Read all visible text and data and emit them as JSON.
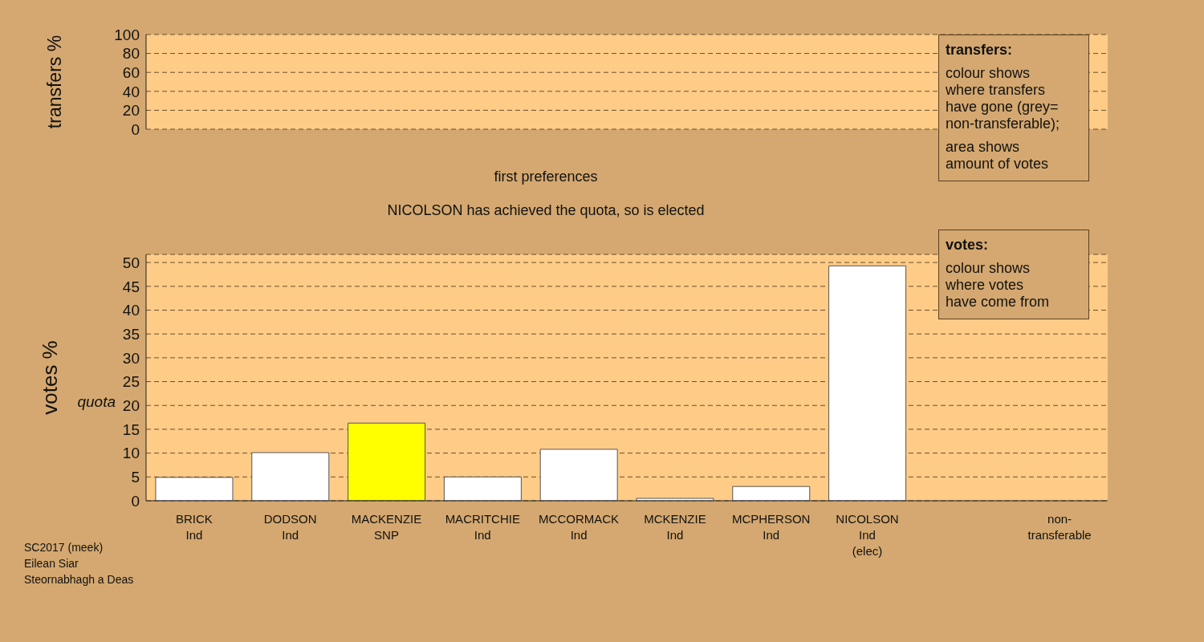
{
  "chart_data": [
    {
      "type": "bar",
      "ylabel": "transfers %",
      "categories": [
        null,
        null,
        null,
        null,
        null,
        null,
        null,
        null,
        null,
        null
      ],
      "values": [
        null,
        null,
        null,
        null,
        null,
        null,
        null,
        null,
        null,
        null
      ],
      "ylim": [
        0,
        100
      ],
      "yticks": [
        0,
        20,
        40,
        60,
        80,
        100
      ],
      "grid": "y",
      "tick_labels": "y",
      "annotations": [
        "transfers:",
        "colour shows\nwhere transfers\nhave gone (grey=\nnon-transferable);",
        "area shows\namount of votes"
      ]
    },
    {
      "type": "bar",
      "title": "first preferences",
      "subtitle": "NICOLSON has achieved the quota, so is elected",
      "ylabel": "votes %",
      "categories": [
        "BRICK\nInd",
        "DODSON\nInd",
        "MACKENZIE\nSNP",
        "MACRITCHIE\nInd",
        "MCCORMACK\nInd",
        "MCKENZIE\nInd",
        "MCPHERSON\nInd",
        "NICOLSON\nInd\n(elec)",
        null,
        "non-\ntransferable"
      ],
      "values": [
        4.9,
        10.1,
        16.3,
        5.0,
        10.8,
        0.5,
        3.0,
        49.3,
        null,
        null
      ],
      "colors": [
        "#ffffff",
        "#ffffff",
        "#ffff00",
        "#ffffff",
        "#ffffff",
        "#ffffff",
        "#ffffff",
        "#ffffff",
        "#ffffff",
        "#ffffff"
      ],
      "ylim": [
        0,
        51.7
      ],
      "yticks": [
        0,
        5,
        10,
        15,
        20,
        25,
        30,
        35,
        40,
        45,
        50
      ],
      "grid": "y",
      "annotations": [
        "quota",
        "votes:",
        "colour shows\nwhere votes\nhave come from",
        "SC2017 (meek)\nEilean Siar\nSteornabhagh a Deas"
      ]
    }
  ]
}
